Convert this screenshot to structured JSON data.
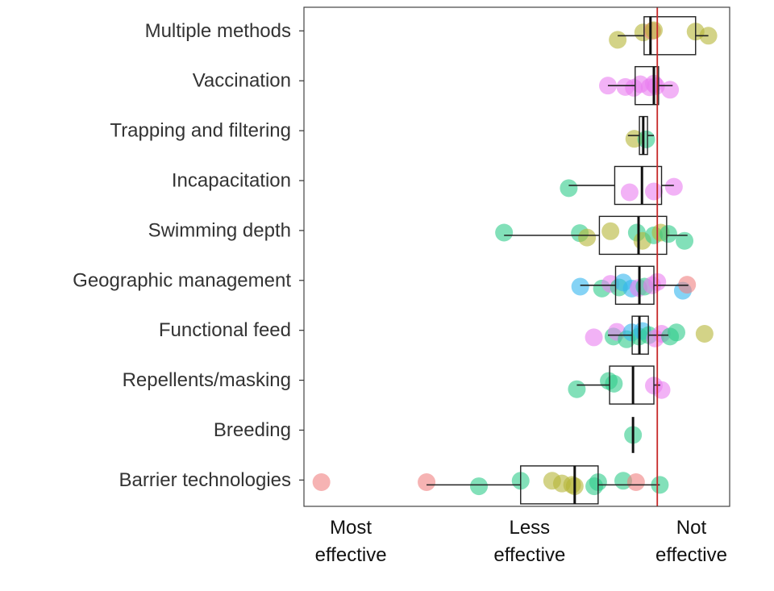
{
  "chart_data": {
    "type": "box_jitter",
    "title": "",
    "xlabel": "",
    "ylabel": "",
    "xlim": [
      0,
      1
    ],
    "reference_line": {
      "x": 0.83,
      "color": "#c62828"
    },
    "x_tick_labels": [
      {
        "lines": [
          "Most",
          "effective"
        ],
        "x": 0.11
      },
      {
        "lines": [
          "Less",
          "effective"
        ],
        "x": 0.53
      },
      {
        "lines": [
          "Not",
          "effective"
        ],
        "x": 0.91
      }
    ],
    "color_groups": {
      "red": "#f08080",
      "olive": "#b5b537",
      "green": "#2ecc8a",
      "blue": "#33b5ee",
      "magenta": "#ea7ff0"
    },
    "categories": [
      "Multiple methods",
      "Vaccination",
      "Trapping and filtering",
      "Incapacitation",
      "Swimming depth",
      "Geographic management",
      "Functional feed",
      "Repellents/masking",
      "Breeding",
      "Barrier technologies"
    ],
    "boxes": [
      {
        "category": "Multiple methods",
        "whisker_low": 0.737,
        "q1": 0.799,
        "median": 0.814,
        "q3": 0.92,
        "whisker_high": 0.95
      },
      {
        "category": "Vaccination",
        "whisker_low": 0.714,
        "q1": 0.778,
        "median": 0.822,
        "q3": 0.833,
        "whisker_high": 0.866
      },
      {
        "category": "Trapping and filtering",
        "whisker_low": 0.761,
        "q1": 0.788,
        "median": 0.797,
        "q3": 0.807,
        "whisker_high": 0.822
      },
      {
        "category": "Incapacitation",
        "whisker_low": 0.622,
        "q1": 0.73,
        "median": 0.794,
        "q3": 0.84,
        "whisker_high": 0.869
      },
      {
        "category": "Swimming depth",
        "whisker_low": 0.47,
        "q1": 0.694,
        "median": 0.786,
        "q3": 0.852,
        "whisker_high": 0.901
      },
      {
        "category": "Geographic management",
        "whisker_low": 0.649,
        "q1": 0.732,
        "median": 0.788,
        "q3": 0.822,
        "whisker_high": 0.903
      },
      {
        "category": "Functional feed",
        "whisker_low": 0.714,
        "q1": 0.771,
        "median": 0.788,
        "q3": 0.809,
        "whisker_high": 0.856
      },
      {
        "category": "Repellents/masking",
        "whisker_low": 0.641,
        "q1": 0.718,
        "median": 0.773,
        "q3": 0.822,
        "whisker_high": 0.837
      },
      {
        "category": "Breeding",
        "whisker_low": 0.773,
        "q1": 0.773,
        "median": 0.773,
        "q3": 0.773,
        "whisker_high": 0.773
      },
      {
        "category": "Barrier technologies",
        "whisker_low": 0.288,
        "q1": 0.509,
        "median": 0.636,
        "q3": 0.691,
        "whisker_high": 0.836
      }
    ],
    "points": [
      {
        "category": "Multiple methods",
        "x": 0.737,
        "y_jitter": 0.15,
        "group": "olive"
      },
      {
        "category": "Multiple methods",
        "x": 0.797,
        "y_jitter": -0.12,
        "group": "olive"
      },
      {
        "category": "Multiple methods",
        "x": 0.818,
        "y_jitter": -0.17,
        "group": "red"
      },
      {
        "category": "Multiple methods",
        "x": 0.822,
        "y_jitter": -0.2,
        "group": "olive"
      },
      {
        "category": "Multiple methods",
        "x": 0.92,
        "y_jitter": -0.15,
        "group": "olive"
      },
      {
        "category": "Multiple methods",
        "x": 0.95,
        "y_jitter": 0.0,
        "group": "olive"
      },
      {
        "category": "Vaccination",
        "x": 0.714,
        "y_jitter": 0.0,
        "group": "magenta"
      },
      {
        "category": "Vaccination",
        "x": 0.755,
        "y_jitter": 0.05,
        "group": "magenta"
      },
      {
        "category": "Vaccination",
        "x": 0.775,
        "y_jitter": 0.08,
        "group": "magenta"
      },
      {
        "category": "Vaccination",
        "x": 0.79,
        "y_jitter": -0.05,
        "group": "magenta"
      },
      {
        "category": "Vaccination",
        "x": 0.812,
        "y_jitter": 0.06,
        "group": "magenta"
      },
      {
        "category": "Vaccination",
        "x": 0.822,
        "y_jitter": -0.07,
        "group": "magenta"
      },
      {
        "category": "Vaccination",
        "x": 0.827,
        "y_jitter": 0.02,
        "group": "magenta"
      },
      {
        "category": "Vaccination",
        "x": 0.86,
        "y_jitter": 0.15,
        "group": "magenta"
      },
      {
        "category": "Trapping and filtering",
        "x": 0.776,
        "y_jitter": 0.12,
        "group": "olive"
      },
      {
        "category": "Trapping and filtering",
        "x": 0.804,
        "y_jitter": 0.14,
        "group": "green"
      },
      {
        "category": "Incapacitation",
        "x": 0.622,
        "y_jitter": 0.1,
        "group": "green"
      },
      {
        "category": "Incapacitation",
        "x": 0.765,
        "y_jitter": 0.25,
        "group": "magenta"
      },
      {
        "category": "Incapacitation",
        "x": 0.822,
        "y_jitter": 0.22,
        "group": "magenta"
      },
      {
        "category": "Incapacitation",
        "x": 0.869,
        "y_jitter": 0.05,
        "group": "magenta"
      },
      {
        "category": "Swimming depth",
        "x": 0.47,
        "y_jitter": -0.1,
        "group": "green"
      },
      {
        "category": "Swimming depth",
        "x": 0.648,
        "y_jitter": -0.08,
        "group": "green"
      },
      {
        "category": "Swimming depth",
        "x": 0.665,
        "y_jitter": 0.08,
        "group": "olive"
      },
      {
        "category": "Swimming depth",
        "x": 0.72,
        "y_jitter": -0.15,
        "group": "olive"
      },
      {
        "category": "Swimming depth",
        "x": 0.782,
        "y_jitter": -0.1,
        "group": "green"
      },
      {
        "category": "Swimming depth",
        "x": 0.795,
        "y_jitter": 0.2,
        "group": "olive"
      },
      {
        "category": "Swimming depth",
        "x": 0.822,
        "y_jitter": 0.0,
        "group": "green"
      },
      {
        "category": "Swimming depth",
        "x": 0.838,
        "y_jitter": -0.1,
        "group": "olive"
      },
      {
        "category": "Swimming depth",
        "x": 0.856,
        "y_jitter": -0.05,
        "group": "green"
      },
      {
        "category": "Swimming depth",
        "x": 0.894,
        "y_jitter": 0.2,
        "group": "green"
      },
      {
        "category": "Geographic management",
        "x": 0.649,
        "y_jitter": 0.05,
        "group": "blue"
      },
      {
        "category": "Geographic management",
        "x": 0.7,
        "y_jitter": 0.12,
        "group": "green"
      },
      {
        "category": "Geographic management",
        "x": 0.72,
        "y_jitter": -0.05,
        "group": "magenta"
      },
      {
        "category": "Geographic management",
        "x": 0.74,
        "y_jitter": 0.08,
        "group": "green"
      },
      {
        "category": "Geographic management",
        "x": 0.75,
        "y_jitter": -0.1,
        "group": "blue"
      },
      {
        "category": "Geographic management",
        "x": 0.77,
        "y_jitter": 0.12,
        "group": "blue"
      },
      {
        "category": "Geographic management",
        "x": 0.786,
        "y_jitter": 0.1,
        "group": "magenta"
      },
      {
        "category": "Geographic management",
        "x": 0.8,
        "y_jitter": 0.05,
        "group": "green"
      },
      {
        "category": "Geographic management",
        "x": 0.818,
        "y_jitter": 0.0,
        "group": "magenta"
      },
      {
        "category": "Geographic management",
        "x": 0.83,
        "y_jitter": -0.12,
        "group": "magenta"
      },
      {
        "category": "Geographic management",
        "x": 0.89,
        "y_jitter": 0.2,
        "group": "blue"
      },
      {
        "category": "Geographic management",
        "x": 0.9,
        "y_jitter": -0.02,
        "group": "red"
      },
      {
        "category": "Functional feed",
        "x": 0.681,
        "y_jitter": 0.08,
        "group": "magenta"
      },
      {
        "category": "Functional feed",
        "x": 0.727,
        "y_jitter": 0.05,
        "group": "green"
      },
      {
        "category": "Functional feed",
        "x": 0.735,
        "y_jitter": -0.12,
        "group": "magenta"
      },
      {
        "category": "Functional feed",
        "x": 0.758,
        "y_jitter": 0.15,
        "group": "green"
      },
      {
        "category": "Functional feed",
        "x": 0.77,
        "y_jitter": -0.1,
        "group": "blue"
      },
      {
        "category": "Functional feed",
        "x": 0.787,
        "y_jitter": 0.05,
        "group": "green"
      },
      {
        "category": "Functional feed",
        "x": 0.795,
        "y_jitter": -0.15,
        "group": "blue"
      },
      {
        "category": "Functional feed",
        "x": 0.81,
        "y_jitter": 0.0,
        "group": "green"
      },
      {
        "category": "Functional feed",
        "x": 0.825,
        "y_jitter": 0.12,
        "group": "magenta"
      },
      {
        "category": "Functional feed",
        "x": 0.84,
        "y_jitter": -0.05,
        "group": "magenta"
      },
      {
        "category": "Functional feed",
        "x": 0.86,
        "y_jitter": 0.05,
        "group": "green"
      },
      {
        "category": "Functional feed",
        "x": 0.875,
        "y_jitter": -0.1,
        "group": "green"
      },
      {
        "category": "Functional feed",
        "x": 0.941,
        "y_jitter": -0.05,
        "group": "olive"
      },
      {
        "category": "Repellents/masking",
        "x": 0.641,
        "y_jitter": 0.15,
        "group": "green"
      },
      {
        "category": "Repellents/masking",
        "x": 0.716,
        "y_jitter": -0.15,
        "group": "green"
      },
      {
        "category": "Repellents/masking",
        "x": 0.728,
        "y_jitter": -0.05,
        "group": "green"
      },
      {
        "category": "Repellents/masking",
        "x": 0.822,
        "y_jitter": 0.02,
        "group": "magenta"
      },
      {
        "category": "Repellents/masking",
        "x": 0.84,
        "y_jitter": 0.18,
        "group": "magenta"
      },
      {
        "category": "Breeding",
        "x": 0.773,
        "y_jitter": 0.0,
        "group": "green"
      },
      {
        "category": "Barrier technologies",
        "x": 0.041,
        "y_jitter": -0.1,
        "group": "red"
      },
      {
        "category": "Barrier technologies",
        "x": 0.288,
        "y_jitter": -0.1,
        "group": "red"
      },
      {
        "category": "Barrier technologies",
        "x": 0.411,
        "y_jitter": 0.05,
        "group": "green"
      },
      {
        "category": "Barrier technologies",
        "x": 0.509,
        "y_jitter": -0.15,
        "group": "green"
      },
      {
        "category": "Barrier technologies",
        "x": 0.583,
        "y_jitter": -0.15,
        "group": "olive"
      },
      {
        "category": "Barrier technologies",
        "x": 0.606,
        "y_jitter": -0.05,
        "group": "olive"
      },
      {
        "category": "Barrier technologies",
        "x": 0.63,
        "y_jitter": 0.0,
        "group": "olive"
      },
      {
        "category": "Barrier technologies",
        "x": 0.636,
        "y_jitter": 0.05,
        "group": "olive"
      },
      {
        "category": "Barrier technologies",
        "x": 0.682,
        "y_jitter": 0.05,
        "group": "green"
      },
      {
        "category": "Barrier technologies",
        "x": 0.691,
        "y_jitter": -0.1,
        "group": "green"
      },
      {
        "category": "Barrier technologies",
        "x": 0.75,
        "y_jitter": -0.15,
        "group": "green"
      },
      {
        "category": "Barrier technologies",
        "x": 0.78,
        "y_jitter": -0.1,
        "group": "red"
      },
      {
        "category": "Barrier technologies",
        "x": 0.836,
        "y_jitter": 0.0,
        "group": "green"
      }
    ]
  }
}
